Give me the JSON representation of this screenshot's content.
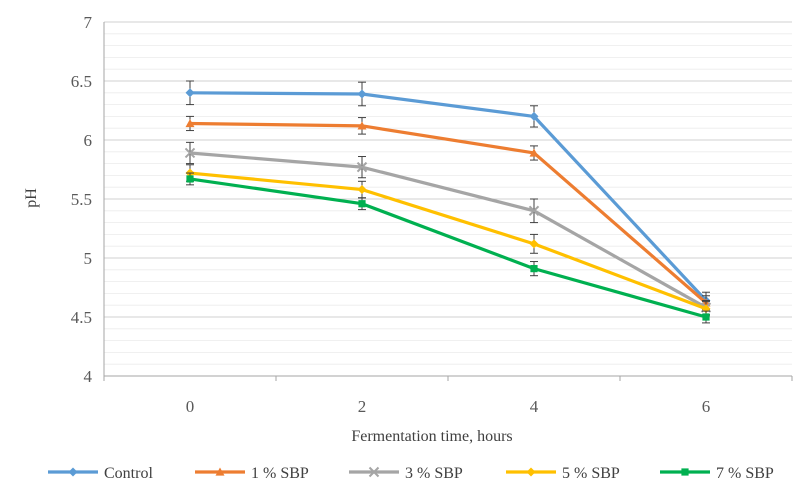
{
  "chart_data": {
    "type": "line",
    "title": "",
    "xlabel": "Fermentation time, hours",
    "ylabel": "pH",
    "x": [
      0,
      2,
      4,
      6
    ],
    "x_tick_labels": [
      "0",
      "2",
      "4",
      "6"
    ],
    "ylim": [
      4,
      7
    ],
    "y_tick_labels": [
      "4",
      "4.5",
      "5",
      "5.5",
      "6",
      "6.5",
      "7"
    ],
    "grid": true,
    "legend_position": "bottom",
    "series": [
      {
        "name": "Control",
        "color": "#5B9BD5",
        "marker": "diamond",
        "values": [
          6.4,
          6.39,
          6.2,
          4.64
        ],
        "errors": [
          0.1,
          0.1,
          0.09,
          0.07
        ]
      },
      {
        "name": "1 % SBP",
        "color": "#ED7D31",
        "marker": "triangle",
        "values": [
          6.14,
          6.12,
          5.89,
          4.62
        ],
        "errors": [
          0.06,
          0.07,
          0.06,
          0.06
        ]
      },
      {
        "name": "3 % SBP",
        "color": "#A5A5A5",
        "marker": "x",
        "values": [
          5.89,
          5.77,
          5.4,
          4.58
        ],
        "errors": [
          0.09,
          0.09,
          0.1,
          0.06
        ]
      },
      {
        "name": "5 % SBP",
        "color": "#FFC000",
        "marker": "diamond",
        "values": [
          5.72,
          5.58,
          5.12,
          4.57
        ],
        "errors": [
          0.07,
          0.07,
          0.08,
          0.06
        ]
      },
      {
        "name": "7 % SBP",
        "color": "#00B050",
        "marker": "square",
        "values": [
          5.67,
          5.46,
          4.91,
          4.5
        ],
        "errors": [
          0.05,
          0.05,
          0.06,
          0.05
        ]
      }
    ]
  }
}
